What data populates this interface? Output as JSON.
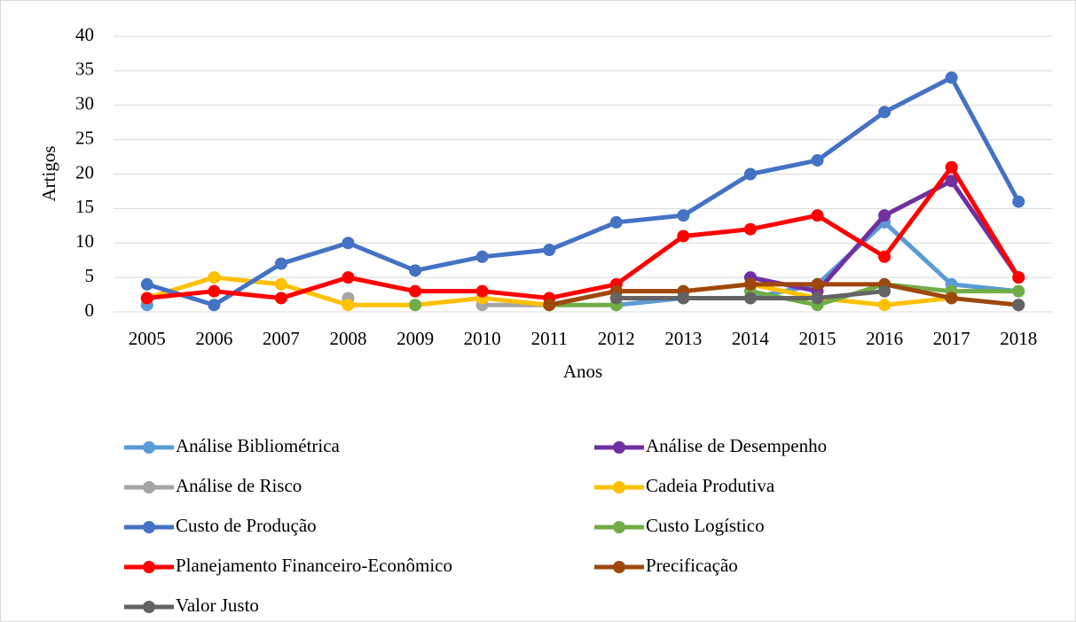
{
  "chart_data": {
    "type": "line",
    "x_label": "Anos",
    "y_label": "Artigos",
    "categories": [
      "2005",
      "2006",
      "2007",
      "2008",
      "2009",
      "2010",
      "2011",
      "2012",
      "2013",
      "2014",
      "2015",
      "2016",
      "2017",
      "2018"
    ],
    "ylim": [
      0,
      40
    ],
    "yticks": [
      0,
      5,
      10,
      15,
      20,
      25,
      30,
      35,
      40
    ],
    "grid": true,
    "legend": "bottom",
    "series": [
      {
        "name": "Análise Bibliométrica",
        "color": "#5b9bd5",
        "values": [
          1,
          null,
          null,
          null,
          null,
          null,
          null,
          1,
          2,
          2,
          4,
          13,
          4,
          3
        ]
      },
      {
        "name": "Análise de Desempenho",
        "color": "#7030a0",
        "values": [
          null,
          null,
          null,
          null,
          null,
          null,
          null,
          null,
          null,
          5,
          3,
          14,
          19,
          5
        ]
      },
      {
        "name": "Análise de Risco",
        "color": "#a5a5a5",
        "values": [
          null,
          null,
          null,
          2,
          null,
          1,
          1,
          null,
          null,
          null,
          null,
          null,
          null,
          null
        ]
      },
      {
        "name": "Cadeia Produtiva",
        "color": "#ffc000",
        "values": [
          2,
          5,
          4,
          1,
          1,
          2,
          1,
          3,
          3,
          4,
          2,
          1,
          2,
          null
        ]
      },
      {
        "name": "Custo de Produção",
        "color": "#4472c4",
        "values": [
          4,
          1,
          7,
          10,
          6,
          8,
          9,
          13,
          14,
          20,
          22,
          29,
          34,
          16
        ]
      },
      {
        "name": "Custo Logístico",
        "color": "#70ad47",
        "values": [
          null,
          null,
          null,
          null,
          1,
          null,
          1,
          1,
          null,
          3,
          1,
          4,
          3,
          3
        ]
      },
      {
        "name": "Planejamento Financeiro-Econômico",
        "color": "#ff0000",
        "values": [
          2,
          3,
          2,
          5,
          3,
          3,
          2,
          4,
          11,
          12,
          14,
          8,
          21,
          5
        ]
      },
      {
        "name": "Precificação",
        "color": "#9e480e",
        "values": [
          null,
          null,
          null,
          null,
          null,
          null,
          1,
          3,
          3,
          4,
          4,
          4,
          2,
          1
        ]
      },
      {
        "name": "Valor Justo",
        "color": "#636363",
        "values": [
          null,
          null,
          null,
          null,
          null,
          null,
          null,
          2,
          2,
          2,
          2,
          3,
          null,
          1
        ]
      }
    ]
  }
}
